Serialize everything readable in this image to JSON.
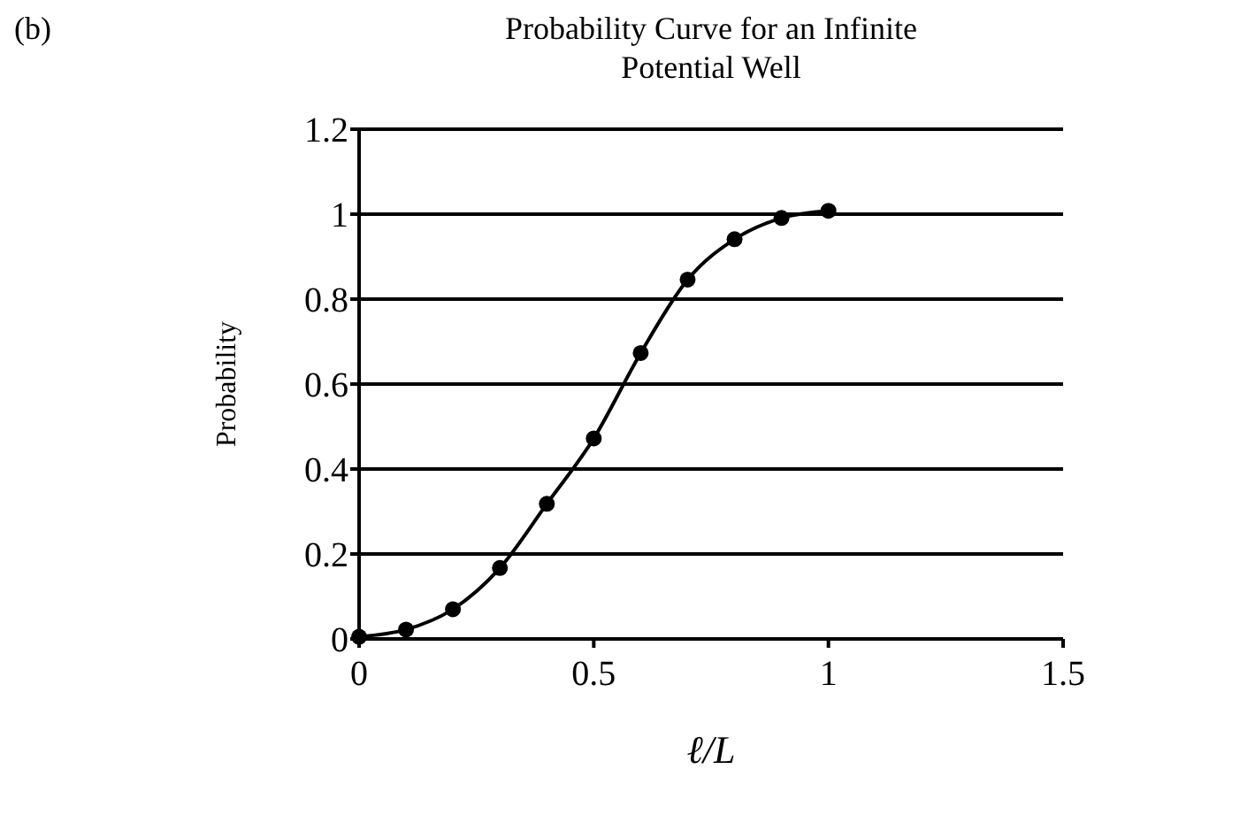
{
  "chart_data": {
    "type": "line",
    "title": "Probability Curve for an Infinite Potential Well",
    "xlabel": "ℓ/L",
    "ylabel": "Probability",
    "annotations": [
      "(b)"
    ],
    "x": [
      0,
      0.1,
      0.2,
      0.3,
      0.4,
      0.5,
      0.6,
      0.7,
      0.8,
      0.9,
      1.0
    ],
    "series": [
      {
        "color": "#000000",
        "values": [
          0.005,
          0.022,
          0.07,
          0.167,
          0.318,
          0.472,
          0.673,
          0.846,
          0.941,
          0.991,
          1.008
        ]
      }
    ],
    "xlim": [
      0,
      1.5
    ],
    "xticks": [
      0,
      0.5,
      1,
      1.5
    ],
    "ylim": [
      0,
      1.2
    ],
    "yticks": [
      0,
      0.2,
      0.4,
      0.6,
      0.8,
      1,
      1.2
    ],
    "grid": "y",
    "marker": "circle",
    "line_style": "solid"
  }
}
